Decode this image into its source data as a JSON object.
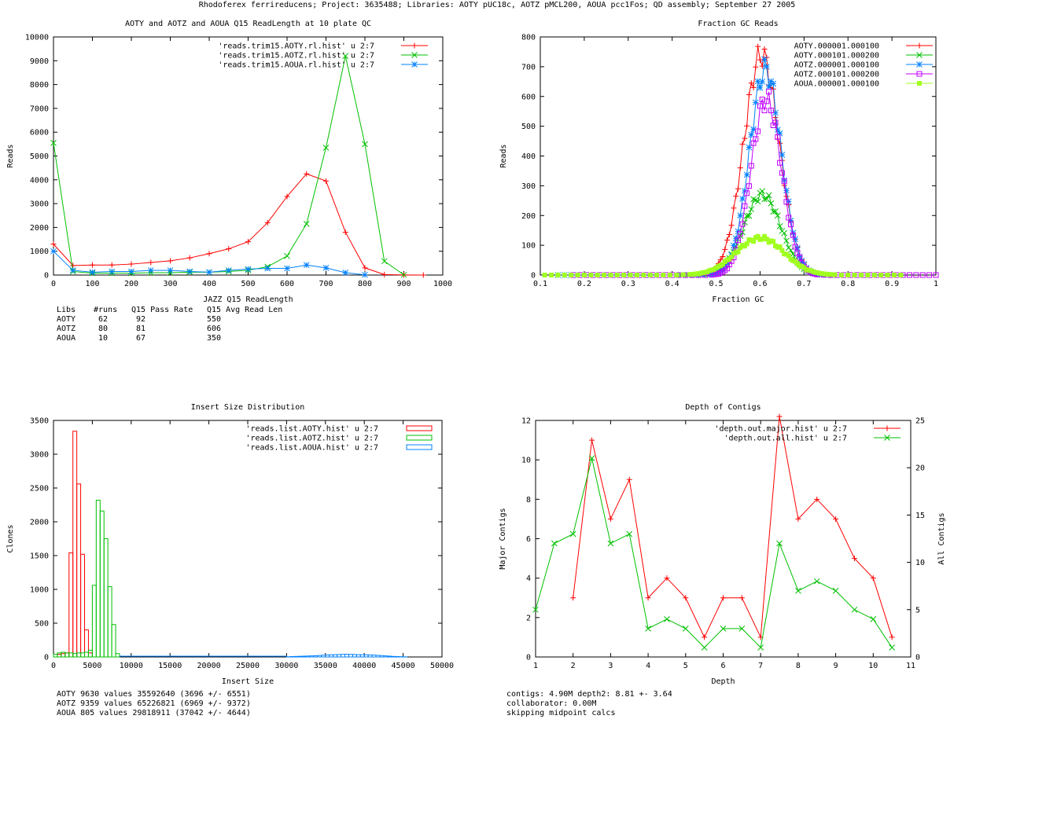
{
  "header": "Rhodoferex ferrireducens; Project: 3635488; Libraries: AOTY pUC18c, AOTZ pMCL200, AOUA pcc1Fos; QD assembly; September 27 2005",
  "colors": {
    "red": "#ff0000",
    "green": "#00c000",
    "blue": "#0080ff",
    "purple": "#c000ff",
    "lime": "#a0ff20"
  },
  "chart_data": [
    {
      "id": "readlength",
      "type": "line",
      "title": "AOTY and AOTZ and AOUA Q15 ReadLength at 10 plate QC",
      "xlabel": "JAZZ Q15 ReadLength",
      "ylabel": "Reads",
      "xlim": [
        0,
        1000
      ],
      "ylim": [
        0,
        10000
      ],
      "xticks": [
        0,
        100,
        200,
        300,
        400,
        500,
        600,
        700,
        800,
        900,
        1000
      ],
      "yticks": [
        0,
        1000,
        2000,
        3000,
        4000,
        5000,
        6000,
        7000,
        8000,
        9000,
        10000
      ],
      "legend_position": "top-center",
      "series": [
        {
          "name": "'reads.trim15.AOTY.rl.hist' u 2:7",
          "color": "red",
          "marker": "plus",
          "x": [
            0,
            50,
            100,
            150,
            200,
            250,
            300,
            350,
            400,
            450,
            500,
            550,
            600,
            650,
            700,
            750,
            800,
            850,
            900,
            950
          ],
          "y": [
            1300,
            400,
            420,
            420,
            460,
            530,
            600,
            720,
            900,
            1100,
            1400,
            2200,
            3300,
            4250,
            3950,
            1800,
            300,
            20,
            5,
            0
          ]
        },
        {
          "name": "'reads.trim15.AOTZ.rl.hist' u 2:7",
          "color": "green",
          "marker": "cross",
          "x": [
            0,
            50,
            100,
            150,
            200,
            250,
            300,
            350,
            400,
            450,
            500,
            550,
            600,
            650,
            700,
            750,
            800,
            850,
            900
          ],
          "y": [
            5550,
            150,
            80,
            80,
            80,
            100,
            100,
            120,
            120,
            150,
            200,
            350,
            800,
            2150,
            5350,
            9200,
            5500,
            580,
            10
          ]
        },
        {
          "name": "'reads.trim15.AOUA.rl.hist' u 2:7",
          "color": "blue",
          "marker": "star",
          "x": [
            0,
            50,
            100,
            150,
            200,
            250,
            300,
            350,
            400,
            450,
            500,
            550,
            600,
            650,
            700,
            750,
            800
          ],
          "y": [
            1000,
            200,
            120,
            150,
            150,
            200,
            200,
            150,
            120,
            200,
            250,
            280,
            280,
            420,
            300,
            100,
            10
          ]
        }
      ],
      "stats": {
        "header": [
          "Libs",
          "#runs",
          "Q15 Pass Rate",
          "Q15 Avg Read Len"
        ],
        "rows": [
          [
            "AOTY",
            "62",
            "92",
            "550"
          ],
          [
            "AOTZ",
            "80",
            "81",
            "606"
          ],
          [
            "AOUA",
            "10",
            "67",
            "350"
          ]
        ]
      }
    },
    {
      "id": "gc",
      "type": "line",
      "title": "Fraction GC Reads",
      "xlabel": "Fraction GC",
      "ylabel": "Reads",
      "xlim": [
        0.1,
        1
      ],
      "ylim": [
        0,
        800
      ],
      "xticks": [
        0.1,
        0.2,
        0.3,
        0.4,
        0.5,
        0.6,
        0.7,
        0.8,
        0.9,
        1
      ],
      "yticks": [
        0,
        100,
        200,
        300,
        400,
        500,
        600,
        700,
        800
      ],
      "legend_position": "top-right",
      "series": [
        {
          "name": "AOTY.000001.000100",
          "color": "red",
          "marker": "plus",
          "center": 0.603,
          "sigma": 0.04,
          "peak": 740,
          "xmin": 0.42,
          "xmax": 0.76
        },
        {
          "name": "AOTY.000101.000200",
          "color": "green",
          "marker": "cross",
          "center": 0.605,
          "sigma": 0.042,
          "peak": 270,
          "xmin": 0.42,
          "xmax": 0.77
        },
        {
          "name": "AOTZ.000001.000100",
          "color": "blue",
          "marker": "star",
          "center": 0.612,
          "sigma": 0.036,
          "peak": 690,
          "xmin": 0.14,
          "xmax": 0.86
        },
        {
          "name": "AOTZ.000101.000200",
          "color": "purple",
          "marker": "box",
          "center": 0.614,
          "sigma": 0.035,
          "peak": 590,
          "xmin": 0.175,
          "xmax": 1.0
        },
        {
          "name": "AOUA.000001.000100",
          "color": "lime",
          "marker": "filled-box",
          "center": 0.6,
          "sigma": 0.055,
          "peak": 125,
          "xmin": 0.11,
          "xmax": 0.93
        }
      ]
    },
    {
      "id": "insert",
      "type": "bar",
      "title": "Insert Size Distribution",
      "xlabel": "Insert Size",
      "ylabel": "Clones",
      "xlim": [
        0,
        50000
      ],
      "ylim": [
        0,
        3500
      ],
      "xticks": [
        0,
        5000,
        10000,
        15000,
        20000,
        25000,
        30000,
        35000,
        40000,
        45000,
        50000
      ],
      "yticks": [
        0,
        500,
        1000,
        1500,
        2000,
        2500,
        3000,
        3500
      ],
      "legend_position": "top-right",
      "bin_width": 500,
      "series": [
        {
          "name": "'reads.list.AOTY.hist' u 2:7",
          "color": "red",
          "x": [
            500,
            1000,
            1500,
            2000,
            2500,
            3000,
            3500,
            4000,
            4500
          ],
          "y": [
            40,
            50,
            60,
            1540,
            3340,
            2560,
            1520,
            400,
            60
          ]
        },
        {
          "name": "'reads.list.AOTZ.hist' u 2:7",
          "color": "green",
          "x": [
            0,
            500,
            1000,
            1500,
            2000,
            2500,
            3000,
            3500,
            4000,
            4500,
            5000,
            5500,
            6000,
            6500,
            7000,
            7500,
            8000
          ],
          "y": [
            40,
            60,
            70,
            60,
            60,
            50,
            60,
            60,
            70,
            100,
            1060,
            2320,
            2160,
            1750,
            1040,
            480,
            50
          ]
        },
        {
          "name": "'reads.list.AOUA.hist' u 2:7",
          "color": "blue",
          "x": [
            30000,
            30500,
            31000,
            31500,
            32000,
            32500,
            33000,
            33500,
            34000,
            34500,
            35000,
            35500,
            36000,
            36500,
            37000,
            37500,
            38000,
            38500,
            39000,
            39500,
            40000,
            40500,
            41000,
            41500,
            42000,
            42500,
            43000,
            43500,
            44000,
            44500,
            45000
          ],
          "y": [
            3,
            6,
            8,
            10,
            12,
            14,
            16,
            18,
            22,
            26,
            30,
            32,
            34,
            36,
            38,
            40,
            38,
            36,
            34,
            34,
            32,
            30,
            28,
            24,
            20,
            16,
            12,
            8,
            6,
            4,
            2
          ]
        }
      ],
      "notes": [
        "AOTY 9630 values 35592640 (3696 +/- 6551)",
        "AOTZ 9359 values 65226821 (6969 +/- 9372)",
        "AOUA 805 values 29818911 (37042 +/- 4644)"
      ]
    },
    {
      "id": "depth",
      "type": "line",
      "title": "Depth of Contigs",
      "xlabel": "Depth",
      "ylabel": "Major Contigs",
      "y2label": "All Contigs",
      "xlim": [
        1,
        11
      ],
      "ylim": [
        0,
        12
      ],
      "y2lim": [
        0,
        25
      ],
      "xticks": [
        1,
        2,
        3,
        4,
        5,
        6,
        7,
        8,
        9,
        10,
        11
      ],
      "yticks": [
        0,
        2,
        4,
        6,
        8,
        10,
        12
      ],
      "y2ticks": [
        0,
        5,
        10,
        15,
        20,
        25
      ],
      "legend_position": "top-right",
      "series": [
        {
          "name": "'depth.out.major.hist' u 2:7",
          "color": "red",
          "marker": "plus",
          "axis": "y",
          "x": [
            2,
            2.5,
            3,
            3.5,
            4,
            4.5,
            5,
            5.5,
            6,
            6.5,
            7,
            7.5,
            8,
            8.5,
            9,
            9.5,
            10,
            10.5
          ],
          "y": [
            3,
            11,
            7,
            9,
            3,
            4,
            3,
            1,
            3,
            3,
            1,
            12.2,
            7,
            8,
            7,
            5,
            4,
            1
          ]
        },
        {
          "name": "'depth.out.all.hist' u 2:7",
          "color": "green",
          "marker": "cross",
          "axis": "y2",
          "x": [
            1,
            1.5,
            2,
            2.5,
            3,
            3.5,
            4,
            4.5,
            5,
            5.5,
            6,
            6.5,
            7,
            7.5,
            8,
            8.5,
            9,
            9.5,
            10,
            10.5
          ],
          "y": [
            5,
            12,
            13,
            21,
            12,
            13,
            3,
            4,
            3,
            1,
            3,
            3,
            1,
            12,
            7,
            8,
            7,
            5,
            4,
            1
          ]
        }
      ],
      "notes": [
        "contigs:      4.90M    depth2: 8.81 +- 3.64",
        "collaborator: 0.00M",
        "skipping midpoint calcs"
      ]
    }
  ]
}
